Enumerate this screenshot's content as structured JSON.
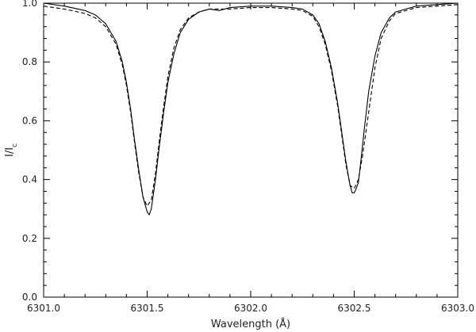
{
  "chart_data": {
    "type": "line",
    "title": "",
    "xlabel": "Wavelength (Å)",
    "ylabel": "I/Ic",
    "ylabel_parts": {
      "main": "I",
      "sub": "c"
    },
    "xlim": [
      6301.0,
      6303.0
    ],
    "ylim": [
      0.0,
      1.0
    ],
    "x_ticks": [
      6301.0,
      6301.5,
      6302.0,
      6302.5,
      6303.0
    ],
    "x_tick_labels": [
      "6301.0",
      "6301.5",
      "6302.0",
      "6302.5",
      "6303.0"
    ],
    "y_ticks": [
      0.0,
      0.2,
      0.4,
      0.6,
      0.8,
      1.0
    ],
    "y_tick_labels": [
      "0.0",
      "0.2",
      "0.4",
      "0.6",
      "0.8",
      "1.0"
    ],
    "grid": false,
    "series": [
      {
        "style": "solid",
        "color": "#000000",
        "x": [
          6301.0,
          6301.1,
          6301.2,
          6301.25,
          6301.3,
          6301.35,
          6301.38,
          6301.4,
          6301.42,
          6301.44,
          6301.46,
          6301.48,
          6301.5,
          6301.51,
          6301.52,
          6301.54,
          6301.56,
          6301.58,
          6301.6,
          6301.63,
          6301.66,
          6301.7,
          6301.75,
          6301.8,
          6301.85,
          6301.9,
          6302.0,
          6302.1,
          6302.2,
          6302.25,
          6302.3,
          6302.33,
          6302.36,
          6302.39,
          6302.42,
          6302.44,
          6302.46,
          6302.48,
          6302.49,
          6302.5,
          6302.51,
          6302.52,
          6302.53,
          6302.55,
          6302.57,
          6302.6,
          6302.63,
          6302.67,
          6302.7,
          6302.8,
          6302.9,
          6303.0
        ],
        "y": [
          1.0,
          0.99,
          0.975,
          0.96,
          0.93,
          0.87,
          0.8,
          0.73,
          0.64,
          0.53,
          0.43,
          0.34,
          0.29,
          0.28,
          0.3,
          0.4,
          0.52,
          0.63,
          0.73,
          0.83,
          0.9,
          0.945,
          0.97,
          0.98,
          0.975,
          0.985,
          0.99,
          0.99,
          0.985,
          0.98,
          0.96,
          0.93,
          0.87,
          0.78,
          0.66,
          0.56,
          0.46,
          0.38,
          0.355,
          0.355,
          0.37,
          0.39,
          0.45,
          0.58,
          0.7,
          0.82,
          0.9,
          0.95,
          0.97,
          0.99,
          0.995,
          1.0
        ]
      },
      {
        "style": "dashed",
        "color": "#000000",
        "x": [
          6301.0,
          6301.1,
          6301.2,
          6301.25,
          6301.3,
          6301.35,
          6301.38,
          6301.4,
          6301.42,
          6301.44,
          6301.46,
          6301.48,
          6301.5,
          6301.52,
          6301.54,
          6301.56,
          6301.58,
          6301.6,
          6301.63,
          6301.66,
          6301.7,
          6301.75,
          6301.8,
          6301.9,
          6302.0,
          6302.1,
          6302.2,
          6302.25,
          6302.3,
          6302.33,
          6302.36,
          6302.39,
          6302.42,
          6302.44,
          6302.46,
          6302.48,
          6302.5,
          6302.52,
          6302.54,
          6302.57,
          6302.6,
          6302.63,
          6302.67,
          6302.7,
          6302.8,
          6302.9,
          6303.0
        ],
        "y": [
          0.99,
          0.98,
          0.965,
          0.95,
          0.92,
          0.86,
          0.79,
          0.72,
          0.63,
          0.52,
          0.42,
          0.34,
          0.31,
          0.33,
          0.42,
          0.54,
          0.65,
          0.75,
          0.85,
          0.91,
          0.95,
          0.97,
          0.98,
          0.98,
          0.985,
          0.985,
          0.98,
          0.975,
          0.955,
          0.92,
          0.86,
          0.77,
          0.65,
          0.55,
          0.45,
          0.38,
          0.37,
          0.4,
          0.48,
          0.63,
          0.78,
          0.88,
          0.94,
          0.965,
          0.985,
          0.99,
          0.995
        ]
      }
    ]
  }
}
